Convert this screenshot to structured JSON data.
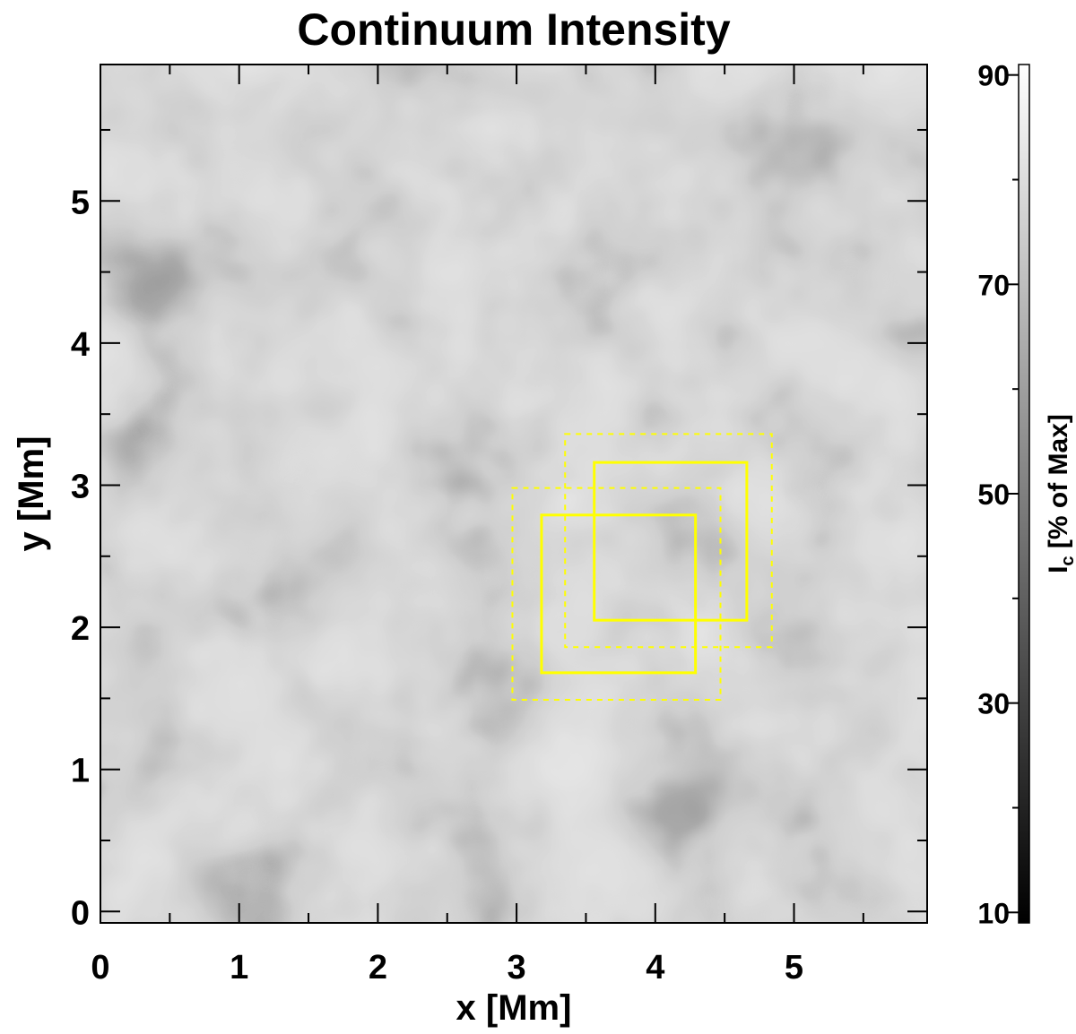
{
  "figure": {
    "title": "Continuum Intensity",
    "x_label": "x [Mm]",
    "y_label": "y [Mm]",
    "colorbar_label_main": "I",
    "colorbar_label_sub": "c",
    "colorbar_label_rest": " [% of Max]"
  },
  "chart_data": {
    "type": "heatmap",
    "title": "Continuum Intensity",
    "xlabel": "x [Mm]",
    "ylabel": "y [Mm]",
    "xlim": [
      0,
      5.96
    ],
    "ylim": [
      -0.08,
      5.96
    ],
    "x_ticks": [
      "0",
      "1",
      "2",
      "3",
      "4",
      "5"
    ],
    "y_ticks": [
      "0",
      "1",
      "2",
      "3",
      "4",
      "5"
    ],
    "colorbar": {
      "label": "Ic [% of Max]",
      "range": [
        9,
        91
      ],
      "ticks": [
        "10",
        "30",
        "50",
        "70",
        "90"
      ],
      "colormap": "grayscale"
    },
    "boxes": [
      {
        "style": "dashed",
        "x": [
          2.97,
          4.47
        ],
        "y": [
          1.49,
          2.98
        ]
      },
      {
        "style": "dashed",
        "x": [
          3.35,
          4.84
        ],
        "y": [
          1.86,
          3.36
        ]
      },
      {
        "style": "solid",
        "x": [
          3.18,
          4.29
        ],
        "y": [
          1.68,
          2.79
        ]
      },
      {
        "style": "solid",
        "x": [
          3.56,
          4.66
        ],
        "y": [
          2.05,
          3.16
        ]
      }
    ],
    "box_color": "#ffff00"
  }
}
